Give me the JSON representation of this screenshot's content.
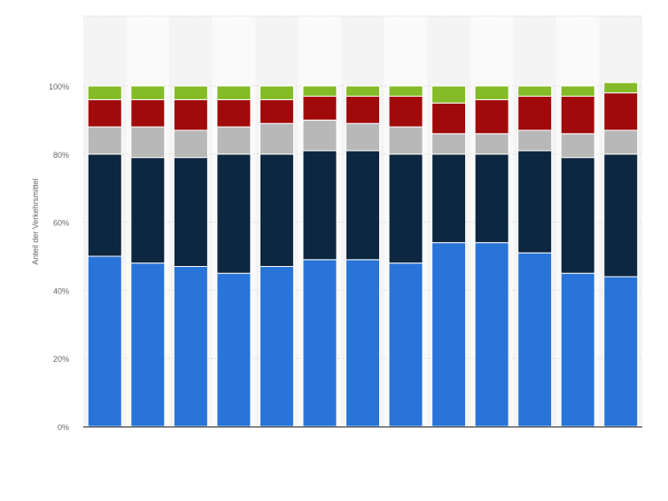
{
  "chart_data": {
    "type": "bar",
    "stacked": true,
    "title": "",
    "xlabel": "",
    "ylabel": "Anteil der Verkehrsmittel",
    "ylim": [
      0,
      120
    ],
    "yticks": [
      "0%",
      "20%",
      "40%",
      "60%",
      "80%",
      "100%"
    ],
    "ytick_values": [
      0,
      20,
      40,
      60,
      80,
      100
    ],
    "grid": true,
    "legend": "none",
    "categories": [
      "",
      "",
      "",
      "",
      "",
      "",
      "",
      "",
      "",
      "",
      "",
      "",
      ""
    ],
    "series": [
      {
        "color": "#2874d9",
        "values": [
          50,
          48,
          47,
          45,
          47,
          49,
          49,
          48,
          54,
          54,
          51,
          45,
          44
        ]
      },
      {
        "color": "#0e2740",
        "values": [
          30,
          31,
          32,
          35,
          33,
          32,
          32,
          32,
          26,
          26,
          30,
          34,
          36
        ]
      },
      {
        "color": "#b8b8b8",
        "values": [
          8,
          9,
          8,
          8,
          9,
          9,
          8,
          8,
          6,
          6,
          6,
          7,
          7
        ]
      },
      {
        "color": "#a10a0a",
        "values": [
          8,
          8,
          9,
          8,
          7,
          7,
          8,
          9,
          9,
          10,
          10,
          11,
          11
        ]
      },
      {
        "color": "#84bb26",
        "values": [
          4,
          4,
          4,
          4,
          4,
          3,
          3,
          3,
          5,
          4,
          3,
          3,
          3
        ]
      }
    ],
    "colors": {
      "band_light": "#f4f4f4",
      "band_lighter": "#fafafa",
      "grid": "#dcdcdc",
      "tick_text": "#666666",
      "axis": "#222222"
    }
  }
}
